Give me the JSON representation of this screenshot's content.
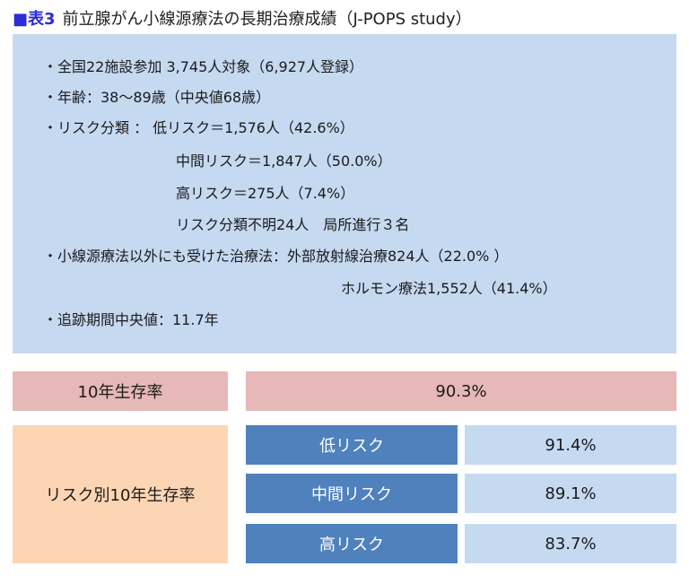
{
  "title": {
    "label": "■表3",
    "text": "前立腺がん小線源療法の長期治療成績（J-POPS study）"
  },
  "info": {
    "lines": [
      "・全国22施設参加  3,745人対象（6,927人登録）",
      "・年齢：38〜89歳（中央値68歳）",
      "・リスク分類 ： 低リスク＝1,576人（42.6%）",
      "中間リスク＝1,847人（50.0%）",
      "高リスク＝275人（7.4%）",
      "リスク分類不明24人　局所進行３名",
      "・小線源療法以外にも受けた治療法：外部放射線治療824人（22.0% ）",
      "ホルモン療法1,552人（41.4%）",
      "・追跡期間中央値：11.7年"
    ]
  },
  "survival": {
    "overall_label": "10年生存率",
    "overall_value": "90.3%",
    "by_risk_label": "リスク別10年生存率",
    "rows": [
      {
        "risk": "低リスク",
        "value": "91.4%"
      },
      {
        "risk": "中間リスク",
        "value": "89.1%"
      },
      {
        "risk": "高リスク",
        "value": "83.7%"
      }
    ]
  }
}
